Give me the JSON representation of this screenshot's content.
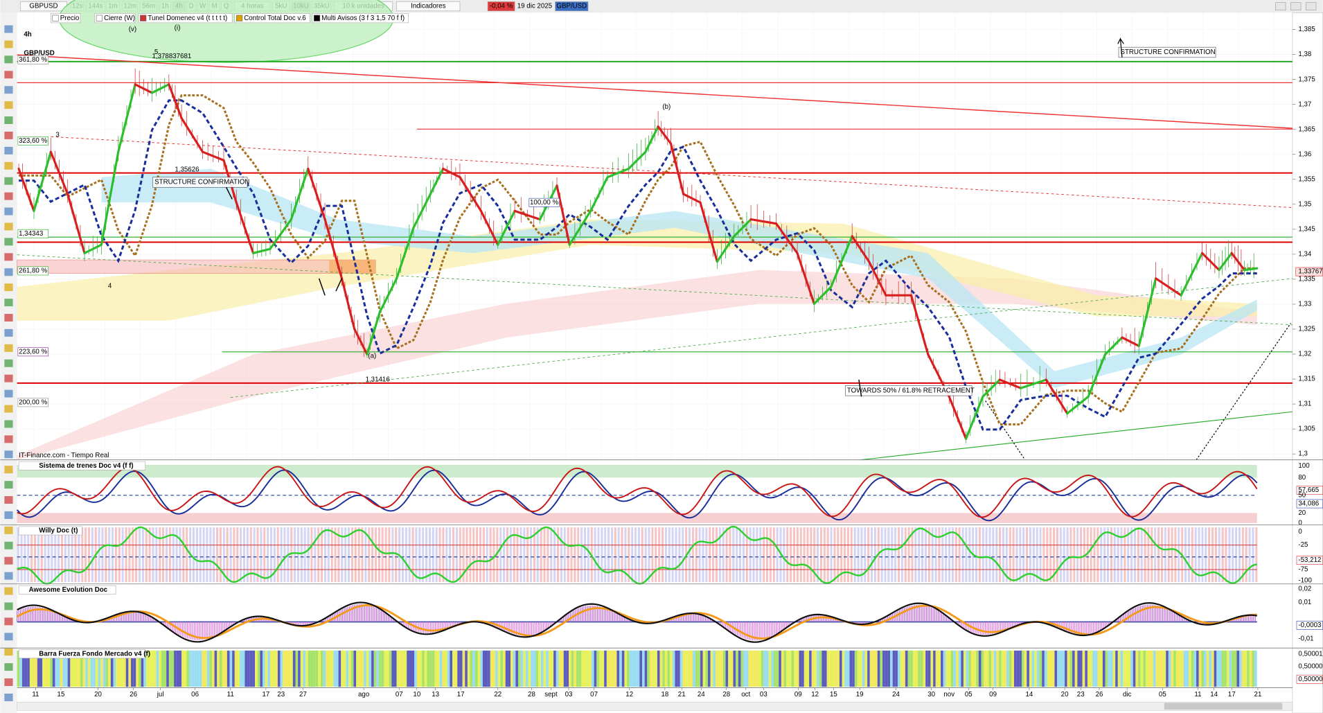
{
  "toolbar": {
    "symbol": "GBPUSD",
    "timeframes": [
      "12s",
      "144s",
      "1m",
      "12m",
      "56m",
      "1h",
      "4h",
      "D",
      "W",
      "M",
      "Q"
    ],
    "period": "4 horas",
    "units": [
      "5kU",
      "10kU",
      "35kU"
    ],
    "unit_count": "10 k unidades",
    "indicators": "Indicadores",
    "change": "-0,04 %",
    "date": "19 dic 2025",
    "pair": "GBP/USD"
  },
  "legend": [
    "Precio",
    "Cierre (W)",
    "Tunel Domenec v4 (t t t t t)",
    "Control Total Doc v.6",
    "Multi Avisos (3 f 3 1,5 70 f f)"
  ],
  "main": {
    "timeframe": "4h",
    "pair": "GBP/USD",
    "price_labels": [
      "1,385",
      "1,38",
      "1,375",
      "1,37",
      "1,365",
      "1,36",
      "1,355",
      "1,35",
      "1,345",
      "1,34",
      "1,335",
      "1,33",
      "1,325",
      "1,32",
      "1,315",
      "1,31",
      "1,305",
      "1,3"
    ],
    "current_price": "1,33767",
    "levels": [
      "361,80 %",
      "323,60 %",
      "1,34343",
      "261,80 %",
      "223,60 %",
      "200,00 %",
      "100,00 %",
      "1,35626",
      "1,31416",
      "1,378837681"
    ],
    "annotations": [
      "STRUCTURE CONFIRMATION",
      "STRUCTURE CONFIRMATION",
      "TOWARDS 50% / 61.8% RETRACEMENT"
    ],
    "waves": [
      "(v)",
      "(i)",
      "(a)",
      "(b)",
      "3",
      "4",
      "5"
    ],
    "source": "IT-Finance.com - Tiempo Real"
  },
  "panels": [
    {
      "title": "Sistema de trenes Doc v4 (f f)",
      "axis_labels": [
        "100",
        "80",
        "57,665",
        "50",
        "34,086",
        "20",
        "0"
      ]
    },
    {
      "title": "Willy Doc (t)",
      "axis_labels": [
        "0",
        "-25",
        "-53,212",
        "-75",
        "-100"
      ]
    },
    {
      "title": "Awesome Evolution Doc",
      "axis_labels": [
        "0,02",
        "0,01",
        "-0,0003",
        "-0,01"
      ]
    },
    {
      "title": "Barra Fuerza Fondo Mercado v4 (f)",
      "axis_labels": [
        "0,50001",
        "0,50000",
        "0,50000"
      ]
    }
  ],
  "x_axis": [
    "11",
    "15",
    "20",
    "26",
    "jul",
    "06",
    "11",
    "17",
    "23",
    "27",
    "ago",
    "07",
    "10",
    "13",
    "17",
    "22",
    "28",
    "sept",
    "03",
    "07",
    "12",
    "18",
    "21",
    "24",
    "28",
    "oct",
    "03",
    "09",
    "12",
    "15",
    "19",
    "24",
    "30",
    "nov",
    "05",
    "09",
    "14",
    "20",
    "23",
    "26",
    "dic",
    "05",
    "11",
    "14",
    "17",
    "21"
  ]
}
